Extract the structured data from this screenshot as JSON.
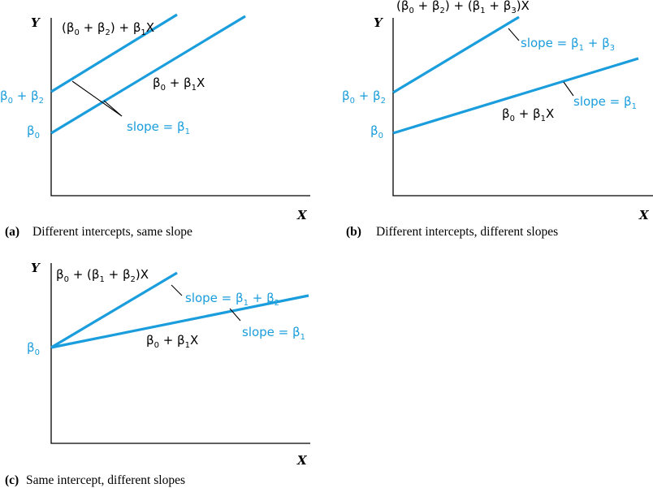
{
  "colors": {
    "line": "#1a9ddc",
    "text_blue": "#1a9ddc",
    "axis": "#000000"
  },
  "panel_a": {
    "y_axis": "Y",
    "x_axis": "X",
    "line_upper_eq": "(β0 + β2) + β1X",
    "line_lower_eq": "β0 + β1X",
    "intercept_upper": "β0 + β2",
    "intercept_lower": "β0",
    "slope_label": "slope = β1",
    "caption_tag": "(a)",
    "caption_text": "Different intercepts, same slope"
  },
  "panel_b": {
    "y_axis": "Y",
    "x_axis": "X",
    "line_upper_eq": "(β0 + β2) + (β1 + β3)X",
    "line_lower_eq": "β0 + β1X",
    "intercept_upper": "β0 + β2",
    "intercept_lower": "β0",
    "slope_upper": "slope = β1 + β3",
    "slope_lower": "slope = β1",
    "caption_tag": "(b)",
    "caption_text": "Different intercepts, different slopes"
  },
  "panel_c": {
    "y_axis": "Y",
    "x_axis": "X",
    "line_upper_eq": "β0 + (β1 + β2)X",
    "line_lower_eq": "β0 + β1X",
    "intercept": "β0",
    "slope_upper": "slope = β1 + β2",
    "slope_lower": "slope = β1",
    "caption_tag": "(c)",
    "caption_text": "Same intercept, different slopes"
  }
}
